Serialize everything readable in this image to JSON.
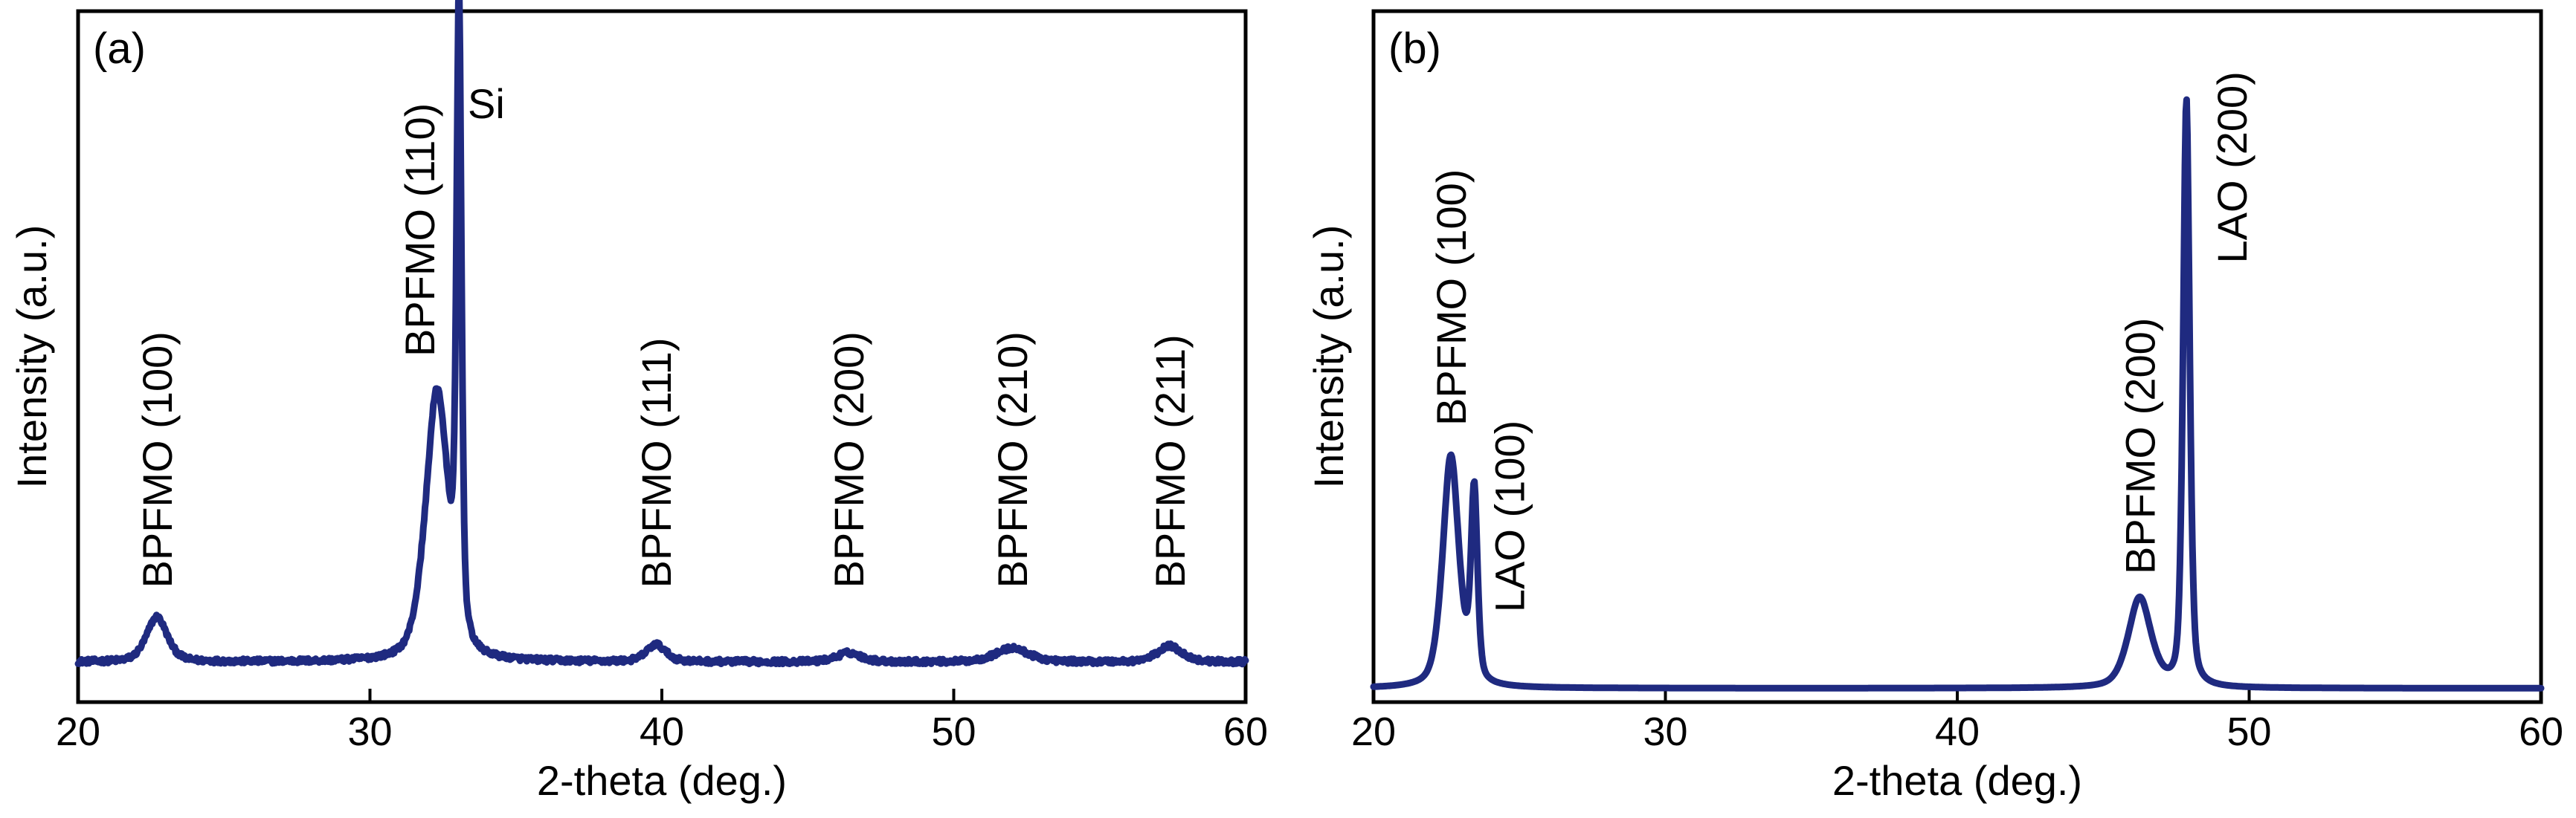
{
  "colors": {
    "trace": "#1f2a80",
    "axes": "#000000"
  },
  "chart_data": [
    {
      "type": "line",
      "panel_label": "(a)",
      "xlabel": "2-theta (deg.)",
      "ylabel": "Intensity (a.u.)",
      "xlim": [
        20,
        60
      ],
      "ylim": [
        0,
        100
      ],
      "xticks": [
        20,
        30,
        40,
        50,
        60
      ],
      "xtick_labels": [
        "20",
        "30",
        "40",
        "50",
        "60"
      ],
      "baseline": 5.8,
      "noise": 0.7,
      "peaks": [
        {
          "center": 22.7,
          "height": 6.5,
          "width": 0.38
        },
        {
          "center": 32.3,
          "height": 39.0,
          "width": 0.42
        },
        {
          "center": 33.05,
          "height": 90.0,
          "width": 0.09
        },
        {
          "center": 39.8,
          "height": 2.5,
          "width": 0.35
        },
        {
          "center": 46.4,
          "height": 1.3,
          "width": 0.45
        },
        {
          "center": 52.0,
          "height": 2.0,
          "width": 0.6
        },
        {
          "center": 57.4,
          "height": 2.3,
          "width": 0.45
        }
      ],
      "annotations": [
        {
          "text": "BPFMO (100)",
          "x": 22.7,
          "y": 16.5,
          "rotate": true
        },
        {
          "text": "BPFMO (110)",
          "x": 31.7,
          "y": 50.0,
          "rotate": true
        },
        {
          "text": "Si",
          "x": 33.35,
          "y": 84.5,
          "rotate": false
        },
        {
          "text": "BPFMO (111)",
          "x": 39.8,
          "y": 16.5,
          "rotate": true
        },
        {
          "text": "BPFMO (200)",
          "x": 46.4,
          "y": 16.5,
          "rotate": true
        },
        {
          "text": "BPFMO (210)",
          "x": 52.0,
          "y": 16.5,
          "rotate": true
        },
        {
          "text": "BPFMO (211)",
          "x": 57.4,
          "y": 16.5,
          "rotate": true
        }
      ]
    },
    {
      "type": "line",
      "panel_label": "(b)",
      "xlabel": "2-theta (deg.)",
      "ylabel": "Intensity (a.u.)",
      "xlim": [
        20,
        60
      ],
      "ylim": [
        0,
        100
      ],
      "xticks": [
        20,
        30,
        40,
        50,
        60
      ],
      "xtick_labels": [
        "20",
        "30",
        "40",
        "50",
        "60"
      ],
      "baseline": 2.0,
      "noise": 0.0,
      "peaks": [
        {
          "center": 22.65,
          "height": 33.5,
          "width": 0.3
        },
        {
          "center": 23.45,
          "height": 27.5,
          "width": 0.12
        },
        {
          "center": 46.25,
          "height": 13.0,
          "width": 0.42
        },
        {
          "center": 47.85,
          "height": 85.0,
          "width": 0.12
        }
      ],
      "annotations": [
        {
          "text": "BPFMO (100)",
          "x": 22.65,
          "y": 40.0,
          "rotate": true
        },
        {
          "text": "LAO (100)",
          "x": 24.65,
          "y": 13.0,
          "rotate": true
        },
        {
          "text": "BPFMO (200)",
          "x": 46.25,
          "y": 18.5,
          "rotate": true
        },
        {
          "text": "LAO (200)",
          "x": 49.4,
          "y": 63.5,
          "rotate": true
        }
      ]
    }
  ]
}
